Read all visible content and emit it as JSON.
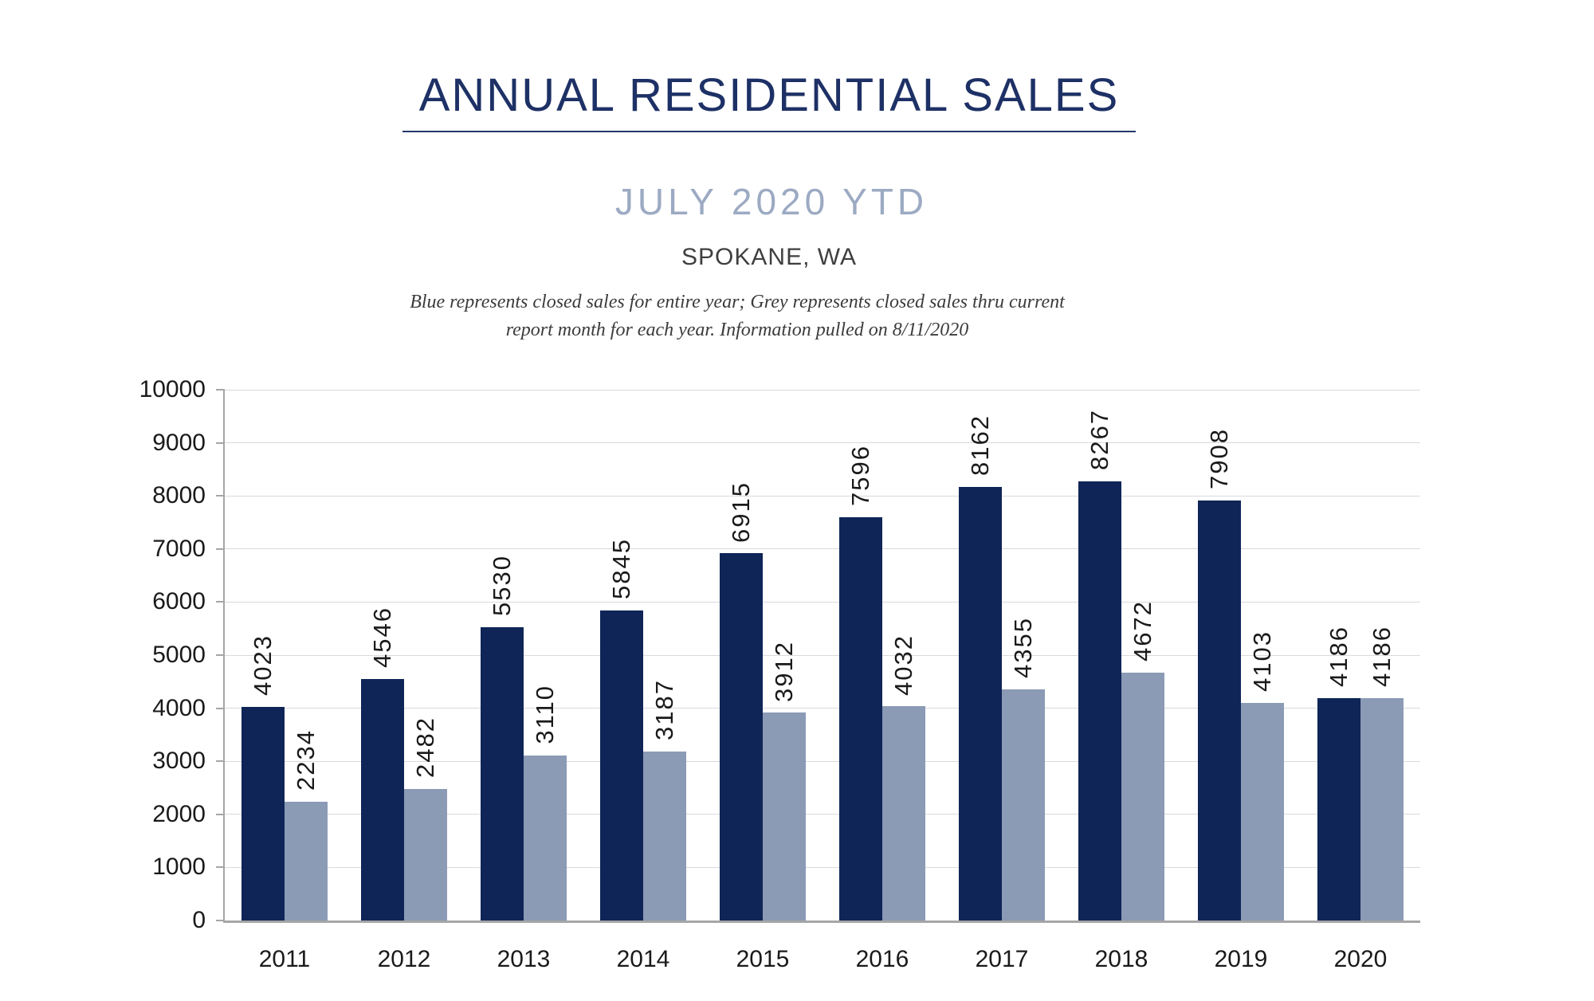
{
  "header": {
    "title": "ANNUAL RESIDENTIAL SALES",
    "subtitle": "JULY 2020 YTD",
    "location": "SPOKANE, WA",
    "note_line1": "Blue represents closed sales for entire year; Grey represents closed sales thru current",
    "note_line2": "report month for each year.  Information pulled on 8/11/2020"
  },
  "chart_data": {
    "type": "bar",
    "title": "ANNUAL RESIDENTIAL SALES",
    "subtitle": "JULY 2020 YTD",
    "location": "SPOKANE, WA",
    "categories": [
      "2011",
      "2012",
      "2013",
      "2014",
      "2015",
      "2016",
      "2017",
      "2018",
      "2019",
      "2020"
    ],
    "series": [
      {
        "name": "Closed sales for entire year",
        "color": "#0f2557",
        "values": [
          4023,
          4546,
          5530,
          5845,
          6915,
          7596,
          8162,
          8267,
          7908,
          4186
        ]
      },
      {
        "name": "Closed sales thru current report month",
        "color": "#8b9ab5",
        "values": [
          2234,
          2482,
          3110,
          3187,
          3912,
          4032,
          4355,
          4672,
          4103,
          4186
        ]
      }
    ],
    "xlabel": "",
    "ylabel": "",
    "ylim": [
      0,
      10000
    ],
    "ytick_step": 1000,
    "grid": true,
    "legend_position": "none",
    "value_labels": "rotated-90-above-bars"
  },
  "colors": {
    "title_navy": "#1e3166",
    "subtitle_grey_blue": "#9caac3",
    "location_grey": "#3f3f3f",
    "note_grey": "#3b3b3b",
    "bar_navy": "#0f2557",
    "bar_grey": "#8b9ab5",
    "axis_line_grey": "#a6a6a6",
    "gridline_grey": "#d8d9df",
    "label_black": "#1a1a1a"
  }
}
